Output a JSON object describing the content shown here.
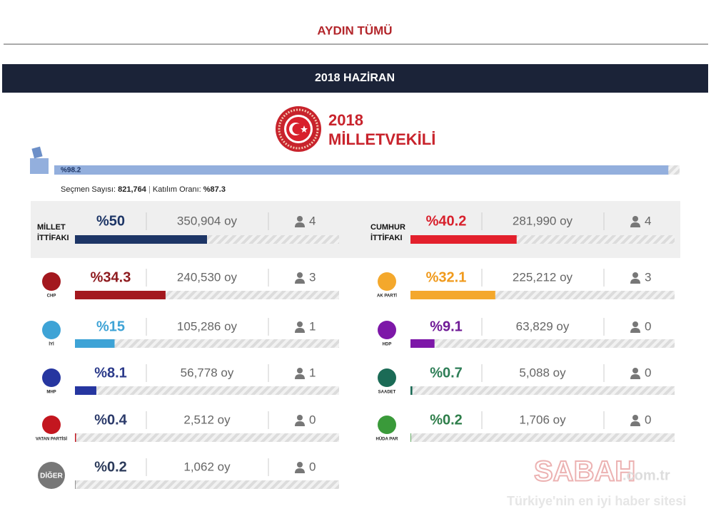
{
  "header": {
    "title": "AYDIN TÜMÜ"
  },
  "section": {
    "title": "2018 HAZİRAN",
    "election_year": "2018",
    "election_name": "MİLLETVEKİLİ"
  },
  "turnout": {
    "bar": {
      "value": 98.2,
      "label": "%98.2"
    },
    "color": "#93afdd",
    "voters_label": "Seçmen Sayısı:",
    "voters": "821,764",
    "separator": "|",
    "rate_label": "Katılım Oranı:",
    "rate": "%87.3"
  },
  "alliances": [
    {
      "name_lines": [
        "MİLLET",
        "İTTİFAKI"
      ],
      "percent": {
        "value": 50,
        "label": "%50"
      },
      "votes": "350,904 oy",
      "seats": 4,
      "color": "#1d3566",
      "text_color": "#1d3566"
    },
    {
      "name_lines": [
        "CUMHUR",
        "İTTİFAKI"
      ],
      "percent": {
        "value": 40.2,
        "label": "%40.2"
      },
      "votes": "281,990 oy",
      "seats": 4,
      "color": "#e3202c",
      "text_color": "#d8202c"
    }
  ],
  "parties": [
    {
      "logo": "CHP",
      "percent": {
        "value": 34.3,
        "label": "%34.3"
      },
      "votes": "240,530 oy",
      "seats": 3,
      "color": "#a3181e",
      "text_color": "#8e1a1e"
    },
    {
      "logo": "AK PARTİ",
      "percent": {
        "value": 32.1,
        "label": "%32.1"
      },
      "votes": "225,212 oy",
      "seats": 3,
      "color": "#f4a82c",
      "text_color": "#f09a1c"
    },
    {
      "logo": "İYİ",
      "percent": {
        "value": 15,
        "label": "%15"
      },
      "votes": "105,286 oy",
      "seats": 1,
      "color": "#3ea3d6",
      "text_color": "#3ea3d6"
    },
    {
      "logo": "HDP",
      "percent": {
        "value": 9.1,
        "label": "%9.1"
      },
      "votes": "63,829 oy",
      "seats": 0,
      "color": "#7d17a8",
      "text_color": "#6f1a96"
    },
    {
      "logo": "MHP",
      "percent": {
        "value": 8.1,
        "label": "%8.1"
      },
      "votes": "56,778 oy",
      "seats": 1,
      "color": "#2636a0",
      "text_color": "#2b3a8a"
    },
    {
      "logo": "SAADET",
      "percent": {
        "value": 0.7,
        "label": "%0.7"
      },
      "votes": "5,088 oy",
      "seats": 0,
      "color": "#1b6b56",
      "text_color": "#2e7e57"
    },
    {
      "logo": "VATAN PARTİSİ",
      "percent": {
        "value": 0.4,
        "label": "%0.4"
      },
      "votes": "2,512 oy",
      "seats": 0,
      "color": "#c3161f",
      "text_color": "#2b3a6a"
    },
    {
      "logo": "HÜDA PAR",
      "percent": {
        "value": 0.2,
        "label": "%0.2"
      },
      "votes": "1,706 oy",
      "seats": 0,
      "color": "#3a9a3a",
      "text_color": "#2e7e4a"
    },
    {
      "logo": "DİĞER",
      "percent": {
        "value": 0.2,
        "label": "%0.2"
      },
      "votes": "1,062 oy",
      "seats": 0,
      "color": "#777777",
      "text_color": "#2b3a5a"
    }
  ],
  "watermark": {
    "brand": "SABAH",
    "domain": ".com.tr",
    "slogan": "Türkiye'nin en iyi haber sitesi"
  }
}
